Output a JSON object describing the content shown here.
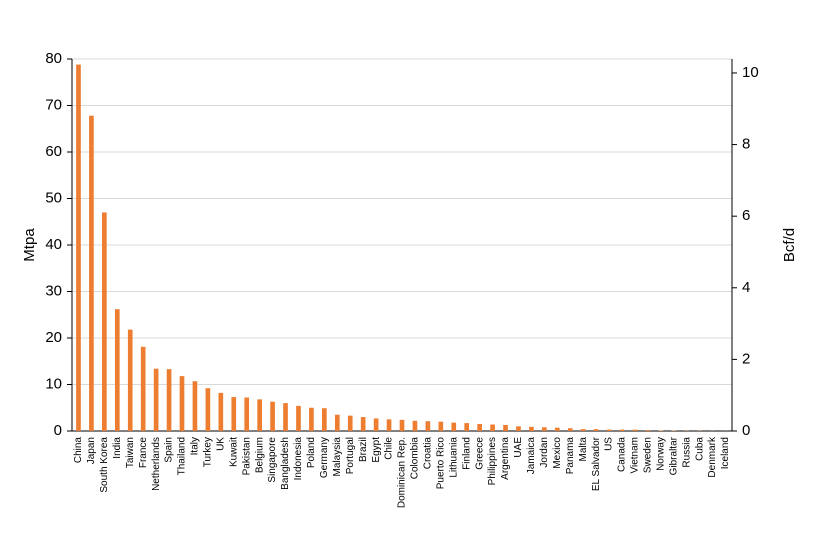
{
  "chart_data": {
    "type": "bar",
    "categories": [
      "China",
      "Japan",
      "South Korea",
      "India",
      "Taiwan",
      "France",
      "Netherlands",
      "Spain",
      "Thailand",
      "Italy",
      "Turkey",
      "UK",
      "Kuwait",
      "Pakistan",
      "Belgium",
      "Singapore",
      "Bangladesh",
      "Indonesia",
      "Poland",
      "Germany",
      "Malaysia",
      "Portugal",
      "Brazil",
      "Egypt",
      "Chile",
      "Dominican Rep.",
      "Colombia",
      "Croatia",
      "Puerto Rico",
      "Lithuania",
      "Finland",
      "Greece",
      "Philippines",
      "Argentina",
      "UAE",
      "Jamaica",
      "Jordan",
      "Mexico",
      "Panama",
      "Malta",
      "EL Salvador",
      "US",
      "Canada",
      "Vietnam",
      "Sweden",
      "Norway",
      "Gibraltar",
      "Russia",
      "Cuba",
      "Denmark",
      "Iceland"
    ],
    "values": [
      78.8,
      67.8,
      47,
      26.2,
      21.8,
      18.1,
      13.4,
      13.3,
      11.8,
      10.7,
      9.2,
      8.2,
      7.3,
      7.2,
      6.8,
      6.3,
      6.0,
      5.4,
      5.0,
      4.9,
      3.5,
      3.3,
      3.0,
      2.7,
      2.5,
      2.4,
      2.2,
      2.1,
      2.0,
      1.8,
      1.7,
      1.5,
      1.4,
      1.3,
      1.0,
      0.9,
      0.8,
      0.7,
      0.6,
      0.4,
      0.4,
      0.3,
      0.3,
      0.3,
      0.2,
      0.1,
      0.1,
      0.05,
      0.05,
      0.03,
      0.02
    ],
    "color": "#ed7d31",
    "y_label": "Mtpa",
    "y2_label": "Bcf/d",
    "ylim": [
      0,
      80
    ],
    "yticks": [
      0,
      10,
      20,
      30,
      40,
      50,
      60,
      70,
      80
    ],
    "y2lim": [
      0,
      10.39
    ],
    "y2ticks": [
      0,
      2,
      4,
      6,
      8,
      10
    ],
    "grid": true
  }
}
